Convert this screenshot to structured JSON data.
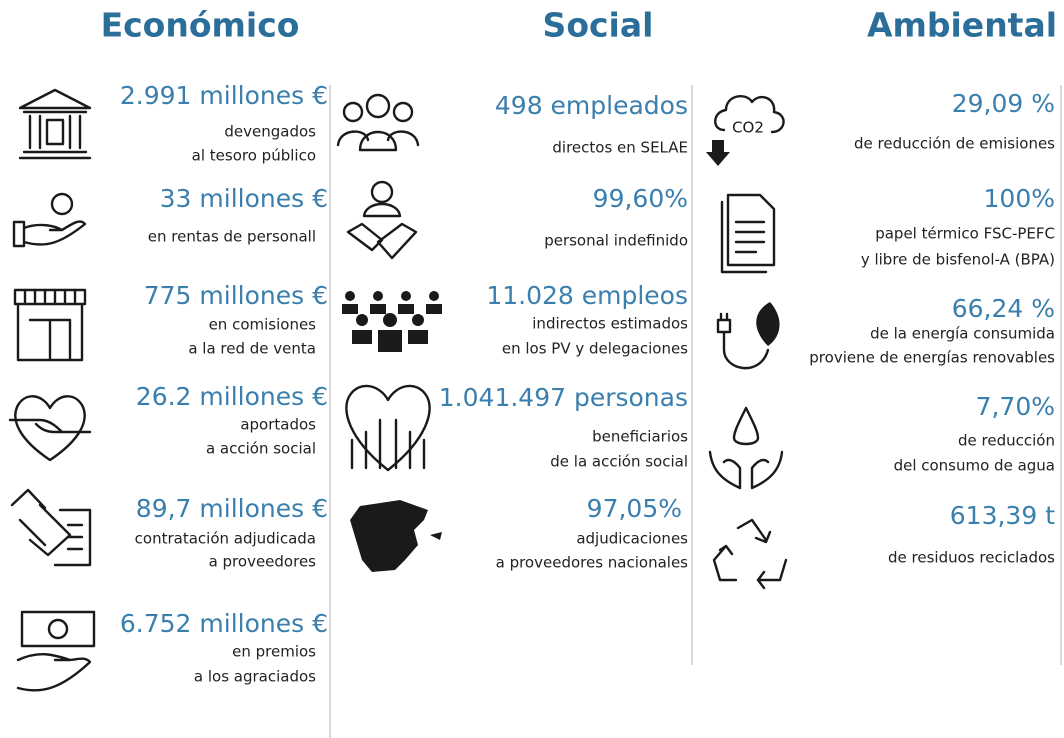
{
  "columns": [
    {
      "title": "Económico",
      "items": [
        {
          "value": "2.991 millones €",
          "lines": [
            "devengados",
            "al tesoro público"
          ]
        },
        {
          "value": "33 millones €",
          "lines": [
            "en rentas de personall"
          ]
        },
        {
          "value": "775 millones €",
          "lines": [
            "en comisiones",
            "a la red de venta"
          ]
        },
        {
          "value": "26.2 millones €",
          "lines": [
            "aportados",
            "a acción social"
          ]
        },
        {
          "value": "89,7 millones €",
          "lines": [
            "contratación adjudicada",
            "a proveedores"
          ]
        },
        {
          "value": "6.752 millones €",
          "lines": [
            "en premios",
            "a los agraciados"
          ]
        }
      ]
    },
    {
      "title": "Social",
      "items": [
        {
          "value": "498 empleados",
          "lines": [
            "directos en SELAE"
          ]
        },
        {
          "value": "99,60%",
          "lines": [
            "personal indefinido"
          ]
        },
        {
          "value": "11.028 empleos",
          "lines": [
            "indirectos estimados",
            "en los PV y delegaciones"
          ]
        },
        {
          "value": "1.041.497 personas",
          "lines": [
            "beneficiarios",
            "de la acción social"
          ]
        },
        {
          "value": "97,05%",
          "lines": [
            "adjudicaciones",
            "a proveedores nacionales"
          ]
        }
      ]
    },
    {
      "title": "Ambiental",
      "items": [
        {
          "value": "29,09 %",
          "lines": [
            "de reducción de emisiones"
          ]
        },
        {
          "value": "100%",
          "lines": [
            "papel térmico FSC-PEFC",
            "y libre de bisfenol-A (BPA)"
          ]
        },
        {
          "value": "66,24 %",
          "lines": [
            "de la energía consumida",
            "proviene de energías renovables"
          ]
        },
        {
          "value": "7,70%",
          "lines": [
            "de reducción",
            "del consumo de agua"
          ]
        },
        {
          "value": "613,39 t",
          "lines": [
            "de residuos reciclados"
          ]
        }
      ]
    }
  ]
}
